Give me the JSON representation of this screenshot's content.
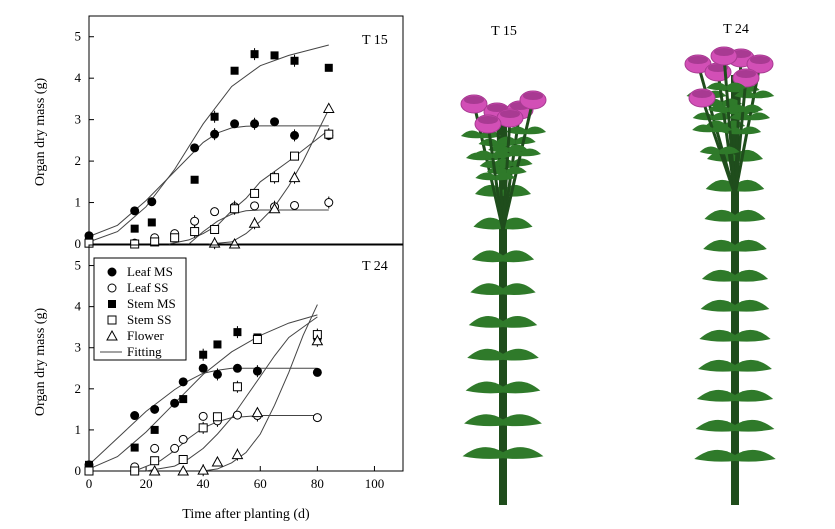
{
  "chart_data": [
    {
      "type": "scatter",
      "panel_label": "T 15",
      "xlabel": "",
      "ylabel": "Organ dry mass (g)",
      "xlim": [
        0,
        110
      ],
      "ylim": [
        0,
        5.5
      ],
      "yticks": [
        "0",
        "1",
        "2",
        "3",
        "4",
        "5"
      ],
      "series": [
        {
          "name": "Leaf MS",
          "marker": "circle-filled",
          "x": [
            0,
            16,
            22,
            37,
            44,
            51,
            58,
            65,
            72,
            84
          ],
          "y": [
            0.2,
            0.8,
            1.02,
            2.32,
            2.65,
            2.9,
            2.9,
            2.95,
            2.62,
            2.62
          ]
        },
        {
          "name": "Leaf SS",
          "marker": "circle-open",
          "x": [
            0,
            16,
            23,
            30,
            37,
            44,
            51,
            58,
            65,
            72,
            84
          ],
          "y": [
            0.05,
            0.02,
            0.15,
            0.25,
            0.55,
            0.78,
            0.9,
            0.92,
            0.9,
            0.93,
            1.0
          ]
        },
        {
          "name": "Stem MS",
          "marker": "square-filled",
          "x": [
            0,
            16,
            22,
            37,
            44,
            51,
            58,
            65,
            72,
            84
          ],
          "y": [
            0.15,
            0.37,
            0.52,
            1.55,
            3.07,
            4.18,
            4.58,
            4.55,
            4.42,
            4.25
          ]
        },
        {
          "name": "Stem SS",
          "marker": "square-open",
          "x": [
            0,
            16,
            23,
            30,
            37,
            44,
            51,
            58,
            65,
            72,
            84
          ],
          "y": [
            0.02,
            0.0,
            0.05,
            0.15,
            0.3,
            0.35,
            0.85,
            1.22,
            1.6,
            2.12,
            2.65
          ]
        },
        {
          "name": "Flower",
          "marker": "triangle-open",
          "x": [
            44,
            51,
            58,
            65,
            72,
            84
          ],
          "y": [
            0.02,
            0.0,
            0.5,
            0.85,
            1.6,
            3.27
          ]
        }
      ],
      "fits": [
        {
          "x": [
            0,
            10,
            20,
            30,
            40,
            45,
            50,
            55,
            60,
            70,
            84
          ],
          "y": [
            0.18,
            0.45,
            1.05,
            1.75,
            2.45,
            2.68,
            2.8,
            2.84,
            2.85,
            2.85,
            2.85
          ]
        },
        {
          "x": [
            0,
            10,
            20,
            30,
            40,
            50,
            60,
            70,
            84
          ],
          "y": [
            0.05,
            0.3,
            0.9,
            1.8,
            2.9,
            3.8,
            4.3,
            4.55,
            4.8
          ]
        },
        {
          "x": [
            35,
            40,
            45,
            50,
            55,
            60,
            84
          ],
          "y": [
            0.0,
            0.3,
            0.55,
            0.72,
            0.8,
            0.82,
            0.82
          ]
        },
        {
          "x": [
            28,
            35,
            40,
            45,
            50,
            55,
            60,
            70,
            84
          ],
          "y": [
            0.0,
            0.1,
            0.25,
            0.45,
            0.8,
            1.1,
            1.5,
            2.0,
            2.75
          ]
        },
        {
          "x": [
            42,
            50,
            55,
            60,
            65,
            70,
            75,
            80,
            84
          ],
          "y": [
            0.0,
            0.05,
            0.25,
            0.55,
            0.9,
            1.4,
            2.0,
            2.7,
            3.25
          ]
        }
      ]
    },
    {
      "type": "scatter",
      "panel_label": "T 24",
      "xlabel": "Time after planting (d)",
      "ylabel": "Organ dry mass (g)",
      "xlim": [
        0,
        110
      ],
      "ylim": [
        0,
        5.5
      ],
      "xticks": [
        "0",
        "20",
        "40",
        "60",
        "80",
        "100"
      ],
      "yticks": [
        "0",
        "1",
        "2",
        "3",
        "4",
        "5"
      ],
      "legend": {
        "position": "top-left",
        "entries": [
          "Leaf MS",
          "Leaf SS",
          "Stem MS",
          "Stem SS",
          "Flower",
          "Fitting"
        ]
      },
      "series": [
        {
          "name": "Leaf MS",
          "marker": "circle-filled",
          "x": [
            0,
            16,
            23,
            30,
            33,
            40,
            45,
            52,
            59,
            80
          ],
          "y": [
            0.15,
            1.35,
            1.5,
            1.65,
            2.17,
            2.5,
            2.35,
            2.5,
            2.43,
            2.4
          ]
        },
        {
          "name": "Leaf SS",
          "marker": "circle-open",
          "x": [
            0,
            16,
            23,
            30,
            33,
            40,
            45,
            52,
            59,
            80
          ],
          "y": [
            0.05,
            0.1,
            0.55,
            0.55,
            0.77,
            1.33,
            1.22,
            1.36,
            1.35,
            1.3
          ]
        },
        {
          "name": "Stem MS",
          "marker": "square-filled",
          "x": [
            0,
            16,
            23,
            33,
            40,
            45,
            52,
            59,
            80
          ],
          "y": [
            0.15,
            0.57,
            1.0,
            1.75,
            2.83,
            3.08,
            3.38,
            3.25,
            3.27
          ]
        },
        {
          "name": "Stem SS",
          "marker": "square-open",
          "x": [
            0,
            16,
            23,
            33,
            40,
            45,
            52,
            59,
            80
          ],
          "y": [
            0.0,
            0.0,
            0.25,
            0.28,
            1.05,
            1.32,
            2.05,
            3.2,
            3.32
          ]
        },
        {
          "name": "Flower",
          "marker": "triangle-open",
          "x": [
            23,
            33,
            40,
            45,
            52,
            59,
            80
          ],
          "y": [
            0.0,
            0.0,
            0.02,
            0.22,
            0.4,
            1.42,
            3.17
          ]
        }
      ],
      "fits": [
        {
          "x": [
            0,
            10,
            20,
            30,
            35,
            40,
            45,
            50,
            60,
            80
          ],
          "y": [
            0.15,
            0.8,
            1.45,
            1.98,
            2.2,
            2.38,
            2.45,
            2.5,
            2.5,
            2.5
          ]
        },
        {
          "x": [
            0,
            10,
            20,
            30,
            40,
            50,
            60,
            70,
            80
          ],
          "y": [
            0.05,
            0.35,
            0.95,
            1.65,
            2.35,
            2.9,
            3.3,
            3.6,
            3.8
          ]
        },
        {
          "x": [
            16,
            25,
            30,
            35,
            40,
            45,
            50,
            60,
            80
          ],
          "y": [
            0.0,
            0.25,
            0.5,
            0.8,
            1.05,
            1.2,
            1.3,
            1.35,
            1.35
          ]
        },
        {
          "x": [
            20,
            30,
            35,
            40,
            45,
            50,
            55,
            60,
            65,
            70,
            80
          ],
          "y": [
            0.0,
            0.12,
            0.3,
            0.55,
            0.9,
            1.3,
            1.8,
            2.3,
            2.8,
            3.25,
            3.75
          ]
        },
        {
          "x": [
            40,
            45,
            50,
            55,
            60,
            65,
            70,
            75,
            80
          ],
          "y": [
            0.0,
            0.05,
            0.2,
            0.45,
            0.9,
            1.6,
            2.4,
            3.3,
            4.05
          ]
        }
      ]
    }
  ],
  "plants": [
    {
      "label": "T 15",
      "whorls": 9
    },
    {
      "label": "T 24",
      "whorls": 11
    }
  ],
  "colors": {
    "leaf": "#2f7a2a",
    "stem": "#1f4d1c",
    "flower": "#d24fb6",
    "flower_dark": "#a83a92"
  }
}
